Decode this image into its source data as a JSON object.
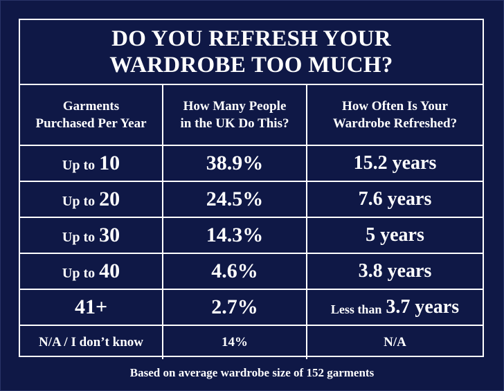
{
  "title": {
    "line1": "DO YOU REFRESH YOUR",
    "line2": "WARDROBE TOO MUCH?"
  },
  "headers": [
    {
      "line1": "Garments",
      "line2": "Purchased Per Year"
    },
    {
      "line1": "How Many People",
      "line2": "in the UK Do This?"
    },
    {
      "line1": "How Often Is Your",
      "line2": "Wardrobe Refreshed?"
    }
  ],
  "rows": [
    {
      "prefix": "Up to",
      "garments": "10",
      "percent": "38.9%",
      "refresh_prefix": "",
      "refresh": "15.2 years"
    },
    {
      "prefix": "Up to",
      "garments": "20",
      "percent": "24.5%",
      "refresh_prefix": "",
      "refresh": "7.6 years"
    },
    {
      "prefix": "Up to",
      "garments": "30",
      "percent": "14.3%",
      "refresh_prefix": "",
      "refresh": "5 years"
    },
    {
      "prefix": "Up to",
      "garments": "40",
      "percent": "4.6%",
      "refresh_prefix": "",
      "refresh": "3.8 years"
    },
    {
      "prefix": "",
      "garments": "41+",
      "percent": "2.7%",
      "refresh_prefix": "Less than",
      "refresh": "3.7 years"
    }
  ],
  "last_row": {
    "garments": "N/A / I don’t know",
    "percent": "14%",
    "refresh": "N/A"
  },
  "footnote": "Based on average wardrobe size of 152 garments"
}
